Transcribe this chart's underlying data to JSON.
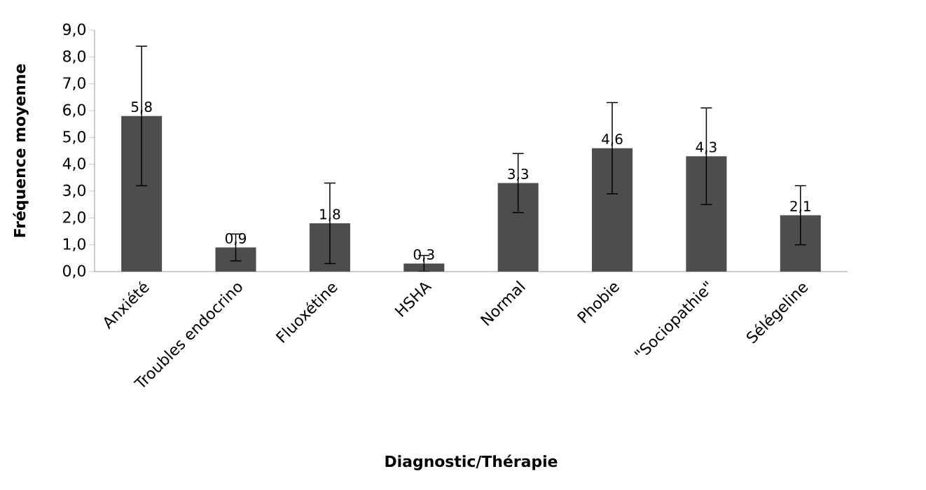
{
  "chart_data": {
    "type": "bar",
    "xlabel": "Diagnostic/Thérapie",
    "ylabel": "Fréquence moyenne",
    "categories": [
      "Anxiété",
      "Troubles endocrino",
      "Fluoxétine",
      "HSHA",
      "Normal",
      "Phobie",
      "\"Sociopathie\"",
      "Sélégeline"
    ],
    "values": [
      5.8,
      0.9,
      1.8,
      0.3,
      3.3,
      4.6,
      4.3,
      2.1
    ],
    "value_labels": [
      "5,8",
      "0,9",
      "1,8",
      "0,3",
      "3,3",
      "4,6",
      "4,3",
      "2,1"
    ],
    "errors": [
      2.6,
      0.5,
      1.5,
      0.3,
      1.1,
      1.7,
      1.8,
      1.1
    ],
    "color": "#4d4d4d",
    "ylim": [
      0,
      9
    ],
    "yticks": [
      {
        "value": 0,
        "label": "0,0"
      },
      {
        "value": 1,
        "label": "1,0"
      },
      {
        "value": 2,
        "label": "2,0"
      },
      {
        "value": 3,
        "label": "3,0"
      },
      {
        "value": 4,
        "label": "4,0"
      },
      {
        "value": 5,
        "label": "5,0"
      },
      {
        "value": 6,
        "label": "6,0"
      },
      {
        "value": 7,
        "label": "7,0"
      },
      {
        "value": 8,
        "label": "8,0"
      },
      {
        "value": 9,
        "label": "9,0"
      }
    ],
    "grid": false
  }
}
